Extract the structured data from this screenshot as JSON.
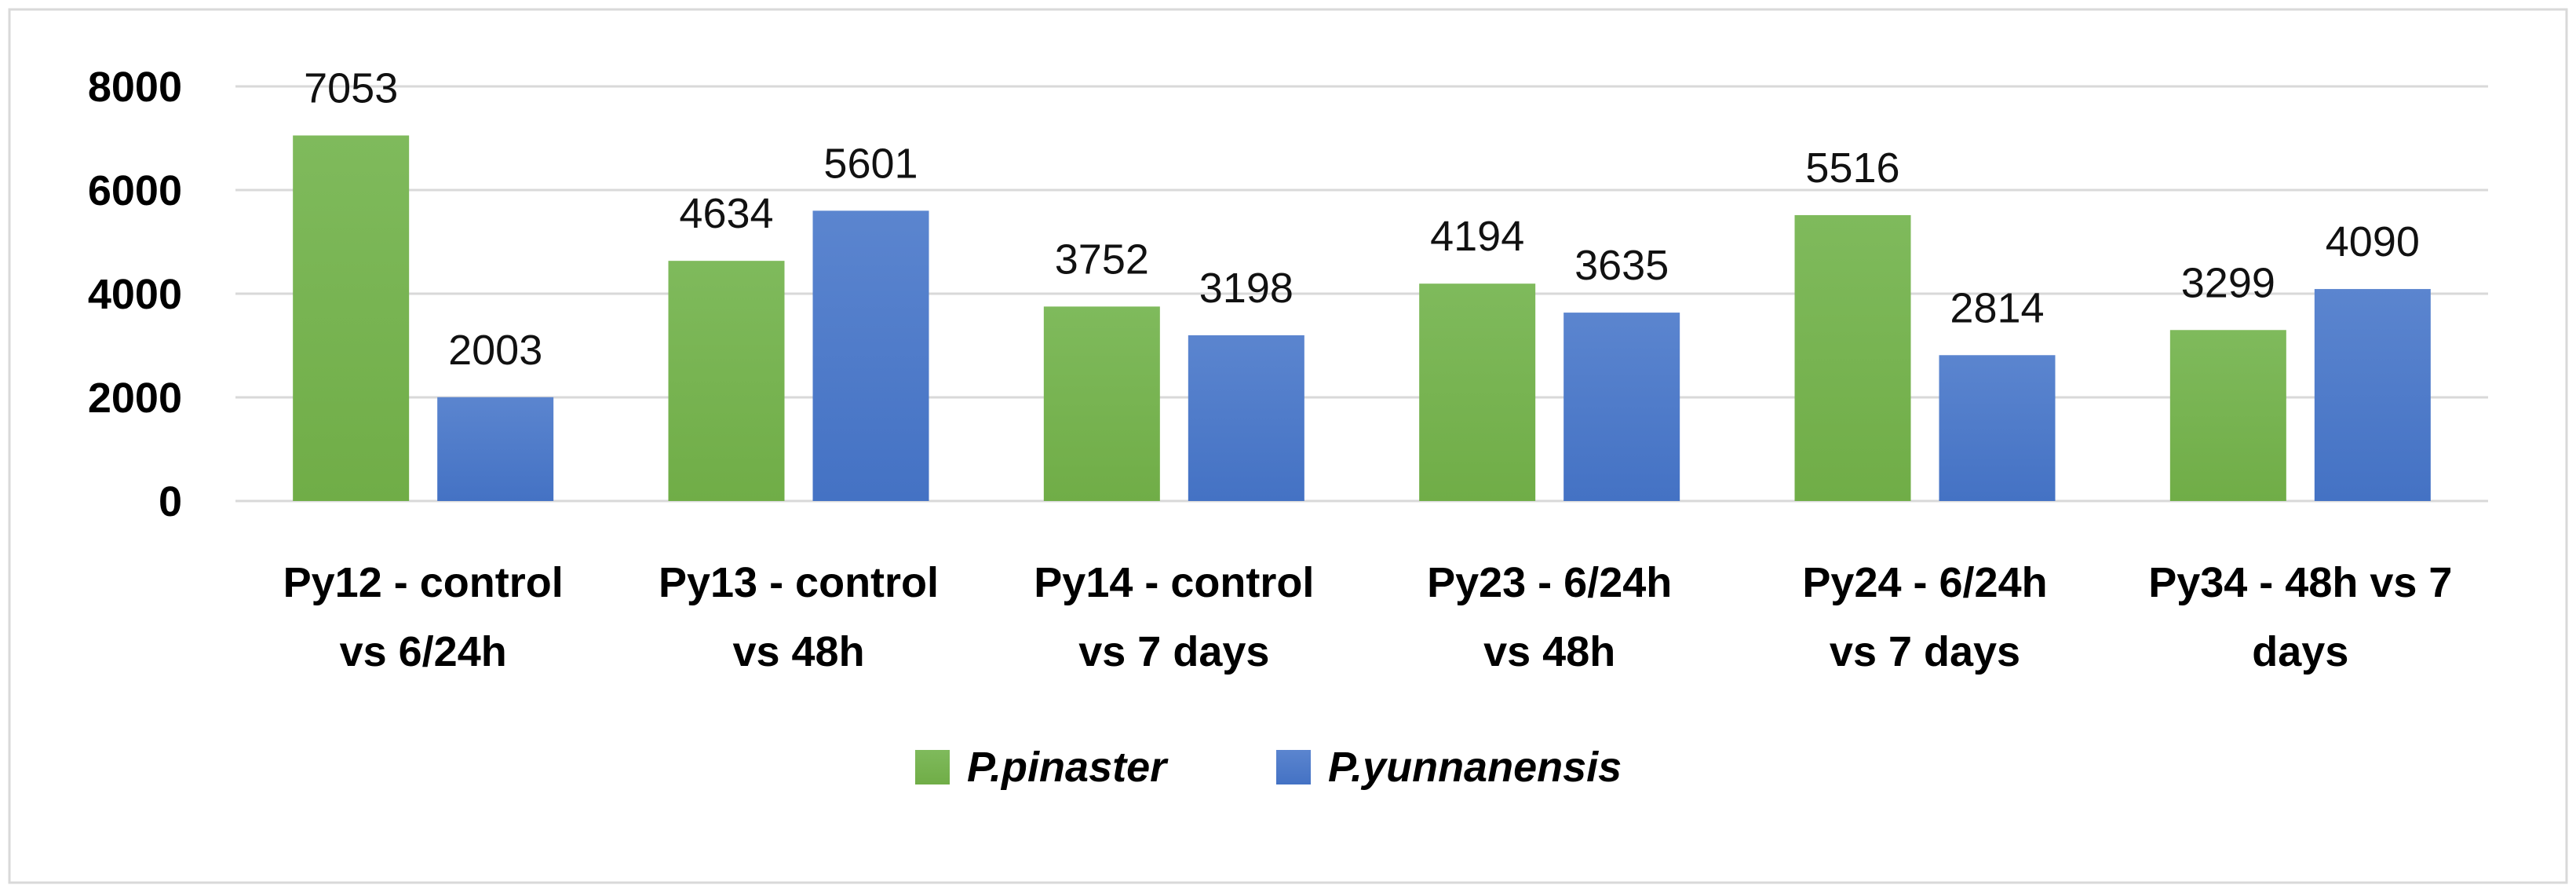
{
  "chart_data": {
    "type": "bar",
    "title": "",
    "xlabel": "",
    "ylabel": "",
    "ylim": [
      0,
      8000
    ],
    "yticks": [
      0,
      2000,
      4000,
      6000,
      8000
    ],
    "grid": true,
    "legend_position": "bottom",
    "categories": [
      [
        "Py12 - control",
        "vs 6/24h"
      ],
      [
        "Py13 - control",
        "vs 48h"
      ],
      [
        "Py14 - control",
        "vs 7 days"
      ],
      [
        "Py23 - 6/24h",
        "vs 48h"
      ],
      [
        "Py24 - 6/24h",
        "vs 7 days"
      ],
      [
        "Py34 - 48h vs 7",
        "days"
      ]
    ],
    "series": [
      {
        "name": "P.pinaster",
        "color": "#70AD47",
        "color_light": "#7FBA5C",
        "values": [
          7053,
          4634,
          3752,
          4194,
          5516,
          3299
        ]
      },
      {
        "name": "P.yunnanensis",
        "color": "#4472C4",
        "color_light": "#5B85CF",
        "values": [
          2003,
          5601,
          3198,
          3635,
          2814,
          4090
        ]
      }
    ],
    "colors": {
      "grid": "#D9D9D9",
      "frame": "#D9D9D9"
    }
  }
}
